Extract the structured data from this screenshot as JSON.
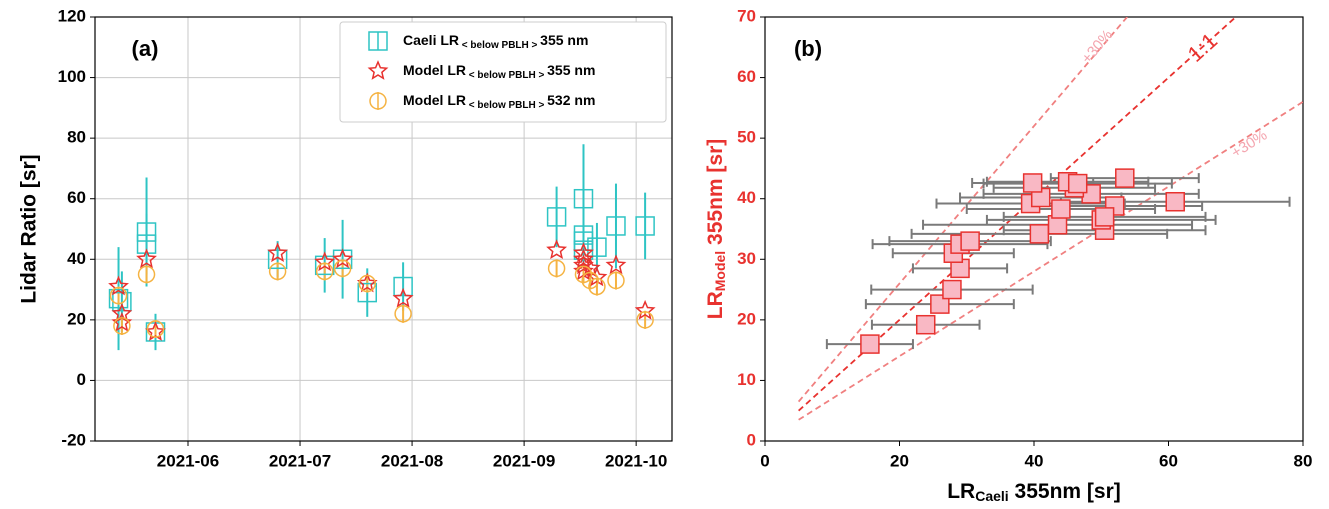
{
  "chart_data": [
    {
      "type": "scatter",
      "panel_label": "(a)",
      "ylabel": "Lidar Ratio [sr]",
      "xlim": [
        5.17,
        10.32
      ],
      "ylim": [
        -20,
        120
      ],
      "xticks": [
        {
          "value": 6,
          "label": "2021-06"
        },
        {
          "value": 7,
          "label": "2021-07"
        },
        {
          "value": 8,
          "label": "2021-08"
        },
        {
          "value": 9,
          "label": "2021-09"
        },
        {
          "value": 10,
          "label": "2021-10"
        }
      ],
      "yticks": [
        -20,
        0,
        20,
        40,
        60,
        80,
        100,
        120
      ],
      "grid": true,
      "legend": "upper right",
      "series": [
        {
          "name": "Caeli LR< below PBLH > 355 nm",
          "color": "#2ec4c4",
          "marker": "square",
          "x": [
            5.38,
            5.41,
            5.63,
            5.63,
            5.71,
            6.8,
            7.22,
            7.38,
            7.6,
            7.92,
            9.29,
            9.53,
            9.53,
            9.53,
            9.53,
            9.65,
            9.82,
            10.08
          ],
          "values": [
            27,
            26,
            49,
            45,
            16,
            40,
            38,
            40,
            29,
            31,
            54,
            60,
            48,
            46,
            43,
            44,
            51,
            51
          ],
          "errors": [
            17,
            10,
            18,
            10,
            6,
            6,
            9,
            13,
            8,
            8,
            10,
            18,
            10,
            10,
            8,
            8,
            14,
            11
          ]
        },
        {
          "name": "Model LR< below PBLH > 355 nm",
          "color": "#e8322f",
          "marker": "star",
          "x": [
            5.38,
            5.41,
            5.41,
            5.63,
            5.71,
            6.8,
            7.22,
            7.38,
            7.6,
            7.92,
            9.29,
            9.53,
            9.53,
            9.53,
            9.53,
            9.59,
            9.65,
            9.82,
            10.08
          ],
          "values": [
            31,
            22,
            19,
            40,
            16,
            42,
            39,
            40,
            32,
            27,
            43,
            42,
            40,
            38,
            36,
            37,
            34,
            38,
            23
          ]
        },
        {
          "name": "Model LR< below PBLH > 532 nm",
          "color": "#f5b342",
          "marker": "circle",
          "x": [
            5.38,
            5.41,
            5.63,
            5.71,
            6.8,
            7.22,
            7.38,
            7.6,
            7.92,
            9.29,
            9.53,
            9.59,
            9.65,
            9.82,
            10.08
          ],
          "values": [
            28,
            18,
            35,
            17,
            36,
            36,
            37,
            32,
            22,
            37,
            35,
            33,
            31,
            33,
            20
          ],
          "errors": [
            3,
            3,
            3,
            3,
            3,
            3,
            3,
            3,
            3,
            3,
            3,
            3,
            3,
            3,
            3
          ]
        }
      ]
    },
    {
      "type": "scatter",
      "panel_label": "(b)",
      "xlabel": "LR",
      "xlabel_sub": "Caeli",
      "xlabel_rest": " 355nm [sr]",
      "ylabel": "LR",
      "ylabel_sub": "Model",
      "ylabel_rest": " 355nm [sr]",
      "ylabel_color": "#e8322f",
      "xlim": [
        0,
        80
      ],
      "ylim": [
        0,
        70
      ],
      "xticks": [
        0,
        20,
        40,
        60,
        80
      ],
      "yticks": [
        0,
        10,
        20,
        30,
        40,
        50,
        60,
        70
      ],
      "ytick_color": "#e8322f",
      "grid": false,
      "reference_lines": [
        {
          "slope": 1,
          "label": "1:1",
          "color": "#e8322f",
          "xrange": [
            5,
            80
          ]
        },
        {
          "slope": 1.3,
          "label": "+30%",
          "color": "#f08080",
          "xrange": [
            5,
            80
          ]
        },
        {
          "slope": 0.7,
          "label": "+30%",
          "color": "#f08080",
          "xrange": [
            5,
            80
          ]
        }
      ],
      "series": [
        {
          "color": "#e8322f",
          "fill": "#f9b8c4",
          "marker": "square",
          "x": [
            15.6,
            23.9,
            26,
            27.8,
            29,
            28,
            29,
            30.5,
            40.8,
            43.5,
            50.5,
            50,
            52,
            44,
            39.5,
            41,
            48.5,
            46,
            45,
            46.5,
            39.8,
            53.5,
            61,
            50.5
          ],
          "values": [
            16,
            19.2,
            22.6,
            25,
            28.5,
            31,
            32.5,
            33,
            34.2,
            35.7,
            34.8,
            36.5,
            38.8,
            38.3,
            39.2,
            40.2,
            40.8,
            41.8,
            42.8,
            42.5,
            42.6,
            43.4,
            39.5,
            37
          ],
          "xerrors": [
            6.4,
            8,
            11,
            12,
            7,
            9,
            13,
            12,
            19,
            20,
            15,
            17,
            13,
            14,
            14,
            12,
            16,
            12,
            12,
            14,
            9,
            11,
            17,
            15
          ]
        }
      ]
    }
  ]
}
